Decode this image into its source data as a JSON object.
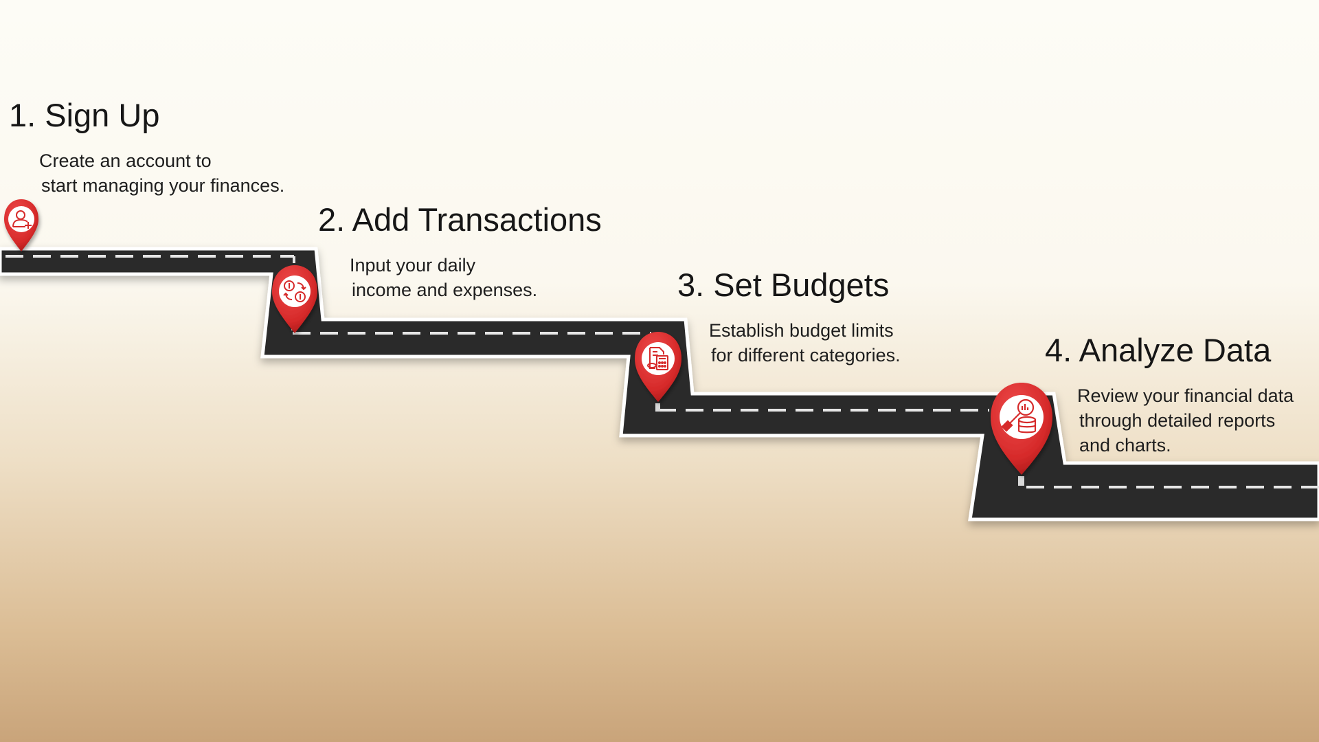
{
  "steps": [
    {
      "title": "1. Sign Up",
      "description_lines": [
        "Create an account to",
        "start managing your finances."
      ],
      "icon": "user-add-icon"
    },
    {
      "title": "2. Add Transactions",
      "description_lines": [
        "Input your daily",
        "income and expenses."
      ],
      "icon": "money-exchange-icon"
    },
    {
      "title": "3. Set Budgets",
      "description_lines": [
        "Establish budget limits",
        "for different categories."
      ],
      "icon": "budget-calculator-icon"
    },
    {
      "title": "4. Analyze Data",
      "description_lines": [
        "Review your financial data",
        "through detailed reports",
        "and charts."
      ],
      "icon": "data-analysis-icon"
    }
  ],
  "colors": {
    "road": "#2b2b2b",
    "road_edge": "#ffffff",
    "lane_marking": "#e8e8e8",
    "pin": "#d62a2a",
    "pin_dark": "#9e1414",
    "background_top": "#fdfcf6",
    "background_bottom": "#c9a47a"
  }
}
